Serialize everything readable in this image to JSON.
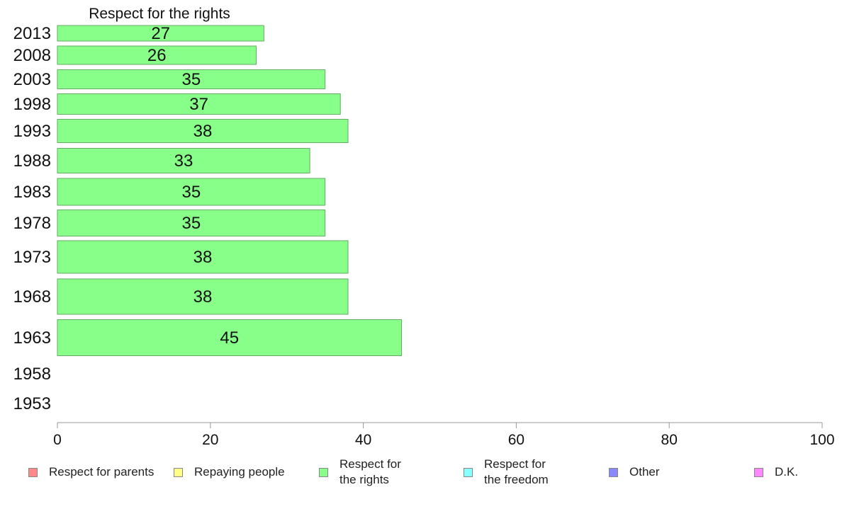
{
  "chart_data": {
    "type": "bar",
    "orientation": "horizontal",
    "title": "Respect for the rights",
    "categories": [
      "2013",
      "2008",
      "2003",
      "1998",
      "1993",
      "1988",
      "1983",
      "1978",
      "1973",
      "1968",
      "1963",
      "1958",
      "1953"
    ],
    "series": [
      {
        "name": "Respect for the rights",
        "values": [
          27,
          26,
          35,
          37,
          38,
          33,
          35,
          35,
          38,
          38,
          45,
          null,
          null
        ]
      }
    ],
    "data_labels": [
      "27",
      "26",
      "35",
      "37",
      "38",
      "33",
      "35",
      "35",
      "38",
      "38",
      "45",
      "",
      ""
    ],
    "xlim": [
      0,
      100
    ],
    "xticks": [
      0,
      20,
      40,
      60,
      80,
      100
    ],
    "xlabel": "",
    "ylabel": "",
    "grid": false,
    "bar_color": "#88ff88",
    "bar_border": "#66aa66",
    "legend_position": "bottom"
  },
  "legend": [
    {
      "label": "Respect for parents",
      "color": "#ff8888"
    },
    {
      "label": "Repaying people",
      "color": "#ffff88"
    },
    {
      "label": "Respect for\nthe rights",
      "color": "#88ff88"
    },
    {
      "label": "Respect for\nthe freedom",
      "color": "#88ffff"
    },
    {
      "label": "Other",
      "color": "#8888ff"
    },
    {
      "label": "D.K.",
      "color": "#ff88ff"
    }
  ]
}
